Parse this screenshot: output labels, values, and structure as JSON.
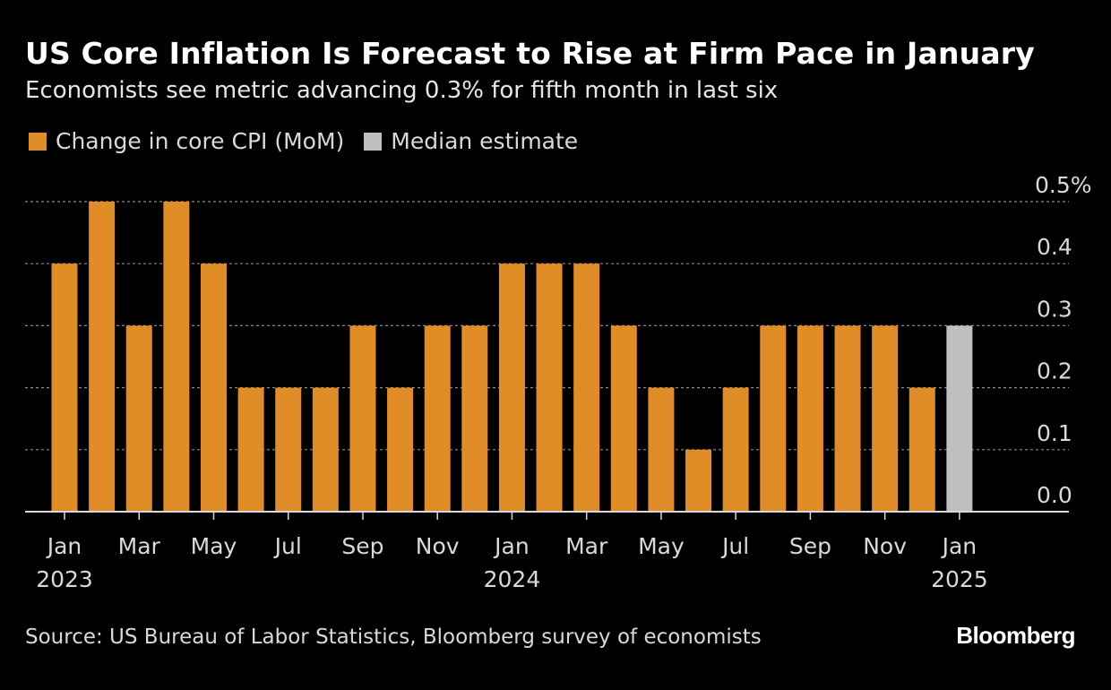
{
  "header": {
    "title": "US Core Inflation Is Forecast to Rise at Firm Pace in January",
    "subtitle": "Economists see metric advancing 0.3% for fifth month in last six"
  },
  "legend": [
    {
      "label": "Change in core CPI (MoM)",
      "color": "#E08C27"
    },
    {
      "label": "Median estimate",
      "color": "#BFBFBF"
    }
  ],
  "footer": {
    "source": "Source: US Bureau of Labor Statistics, Bloomberg survey of economists",
    "logo": "Bloomberg"
  },
  "chart_data": {
    "type": "bar",
    "categories": [
      "Jan 2023",
      "Feb 2023",
      "Mar 2023",
      "Apr 2023",
      "May 2023",
      "Jun 2023",
      "Jul 2023",
      "Aug 2023",
      "Sep 2023",
      "Oct 2023",
      "Nov 2023",
      "Dec 2023",
      "Jan 2024",
      "Feb 2024",
      "Mar 2024",
      "Apr 2024",
      "May 2024",
      "Jun 2024",
      "Jul 2024",
      "Aug 2024",
      "Sep 2024",
      "Oct 2024",
      "Nov 2024",
      "Dec 2024",
      "Jan 2025"
    ],
    "series": [
      {
        "name": "Change in core CPI (MoM)",
        "color": "#E08C27",
        "values": [
          0.4,
          0.5,
          0.3,
          0.5,
          0.4,
          0.2,
          0.2,
          0.2,
          0.3,
          0.2,
          0.3,
          0.3,
          0.4,
          0.4,
          0.4,
          0.3,
          0.2,
          0.1,
          0.2,
          0.3,
          0.3,
          0.3,
          0.3,
          0.2,
          null
        ]
      },
      {
        "name": "Median estimate",
        "color": "#BFBFBF",
        "values": [
          null,
          null,
          null,
          null,
          null,
          null,
          null,
          null,
          null,
          null,
          null,
          null,
          null,
          null,
          null,
          null,
          null,
          null,
          null,
          null,
          null,
          null,
          null,
          null,
          0.3
        ]
      }
    ],
    "x_tick_labels": [
      {
        "month": "Jan",
        "year": "2023"
      },
      {
        "month": "Mar"
      },
      {
        "month": "May"
      },
      {
        "month": "Jul"
      },
      {
        "month": "Sep"
      },
      {
        "month": "Nov"
      },
      {
        "month": "Jan",
        "year": "2024"
      },
      {
        "month": "Mar"
      },
      {
        "month": "May"
      },
      {
        "month": "Jul"
      },
      {
        "month": "Sep"
      },
      {
        "month": "Nov"
      },
      {
        "month": "Jan",
        "year": "2025"
      }
    ],
    "y_tick_labels": [
      "0.0",
      "0.1",
      "0.2",
      "0.3",
      "0.4",
      "0.5%"
    ],
    "ylim": [
      0,
      0.5
    ],
    "y_axis_side": "right",
    "grid": true
  }
}
